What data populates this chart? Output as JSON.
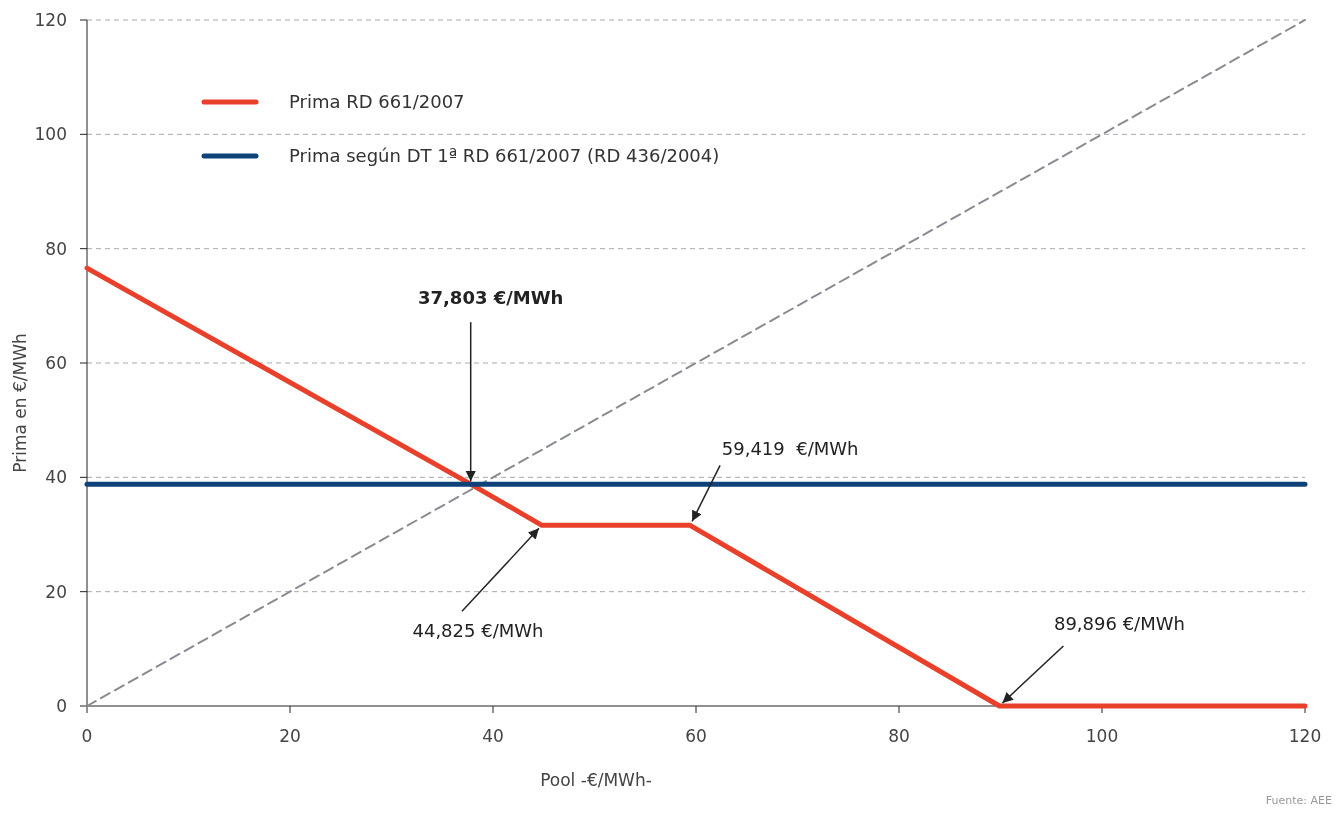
{
  "chart_data": {
    "type": "line",
    "xlabel": "Pool  -€/MWh-",
    "ylabel": "Prima en €/MWh",
    "xlim": [
      0,
      120
    ],
    "ylim": [
      0,
      120
    ],
    "xticks": [
      0,
      20,
      40,
      60,
      80,
      100,
      120
    ],
    "yticks": [
      0,
      20,
      40,
      60,
      80,
      100,
      120
    ],
    "grid": "y",
    "legend": "top left",
    "marker": "none",
    "series": [
      {
        "name": "Prima RD 661/2007",
        "color": "#e8402a",
        "x": [
          0,
          37.803,
          44.825,
          59.419,
          89.896,
          120
        ],
        "values": [
          76.6,
          38.8,
          31.6,
          31.6,
          0,
          0
        ]
      },
      {
        "name": "Prima según DT 1ª RD 661/2007 (RD 436/2004)",
        "color": "#0f4278",
        "x": [
          0,
          120
        ],
        "values": [
          38.8,
          38.8
        ]
      },
      {
        "color": "#888c92",
        "line_style": "dashed",
        "x": [
          0,
          120
        ],
        "values": [
          0,
          120
        ]
      }
    ],
    "annotations": [
      {
        "text": "37,803 €/MWh",
        "x": 37.803,
        "y": 38.8
      },
      {
        "text": "44,825 €/MWh",
        "x": 44.825,
        "y": 31.6
      },
      {
        "text": "59,419  €/MWh",
        "x": 59.419,
        "y": 31.6
      },
      {
        "text": "89,896 €/MWh",
        "x": 89.896,
        "y": 0
      },
      "Fuente: AEE"
    ]
  }
}
